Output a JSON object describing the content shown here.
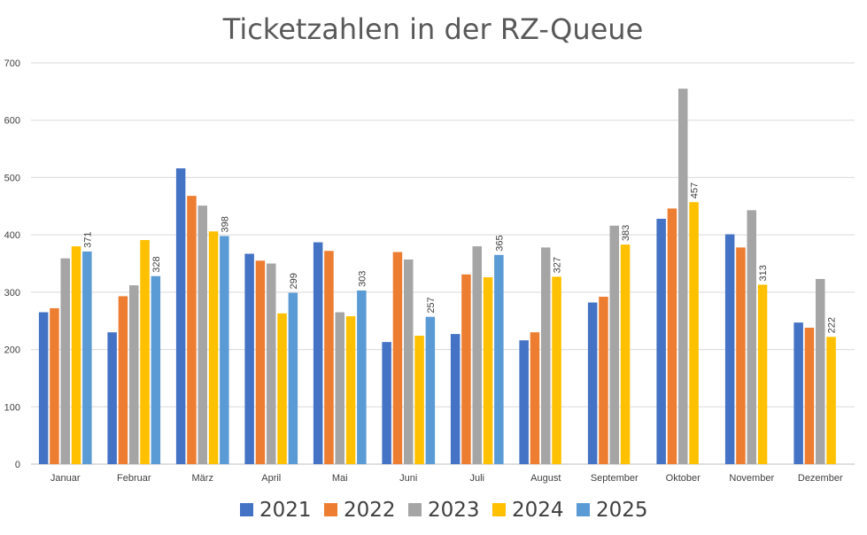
{
  "chart_data": {
    "type": "bar",
    "title": "Ticketzahlen in der RZ-Queue",
    "xlabel": "",
    "ylabel": "",
    "ylim": [
      0,
      700
    ],
    "yticks": [
      0,
      100,
      200,
      300,
      400,
      500,
      600,
      700
    ],
    "grid": true,
    "legend_position": "bottom",
    "categories": [
      "Januar",
      "Februar",
      "März",
      "April",
      "Mai",
      "Juni",
      "Juli",
      "August",
      "September",
      "Oktober",
      "November",
      "Dezember"
    ],
    "series": [
      {
        "name": "2021",
        "color": "#4472C4",
        "values": [
          265,
          230,
          516,
          367,
          387,
          213,
          227,
          216,
          282,
          428,
          401,
          247
        ]
      },
      {
        "name": "2022",
        "color": "#ED7D31",
        "values": [
          272,
          293,
          468,
          355,
          372,
          370,
          331,
          230,
          292,
          446,
          378,
          238
        ]
      },
      {
        "name": "2023",
        "color": "#A5A5A5",
        "values": [
          359,
          312,
          451,
          350,
          265,
          357,
          380,
          378,
          416,
          655,
          443,
          323
        ]
      },
      {
        "name": "2024",
        "color": "#FFC000",
        "values": [
          380,
          391,
          406,
          263,
          258,
          224,
          326,
          327,
          383,
          457,
          313,
          222
        ]
      },
      {
        "name": "2025",
        "color": "#5B9BD5",
        "values": [
          371,
          328,
          398,
          299,
          303,
          257,
          365,
          null,
          null,
          null,
          null,
          null
        ]
      }
    ],
    "data_labels": [
      {
        "category": "Januar",
        "value": "371"
      },
      {
        "category": "Februar",
        "value": "328"
      },
      {
        "category": "März",
        "value": "398"
      },
      {
        "category": "April",
        "value": "299"
      },
      {
        "category": "Mai",
        "value": "303"
      },
      {
        "category": "Juni",
        "value": "257"
      },
      {
        "category": "Juli",
        "value": "365"
      },
      {
        "category": "August",
        "value": "327"
      },
      {
        "category": "September",
        "value": "383"
      },
      {
        "category": "Oktober",
        "value": "457"
      },
      {
        "category": "November",
        "value": "313"
      },
      {
        "category": "Dezember",
        "value": "222"
      }
    ]
  }
}
